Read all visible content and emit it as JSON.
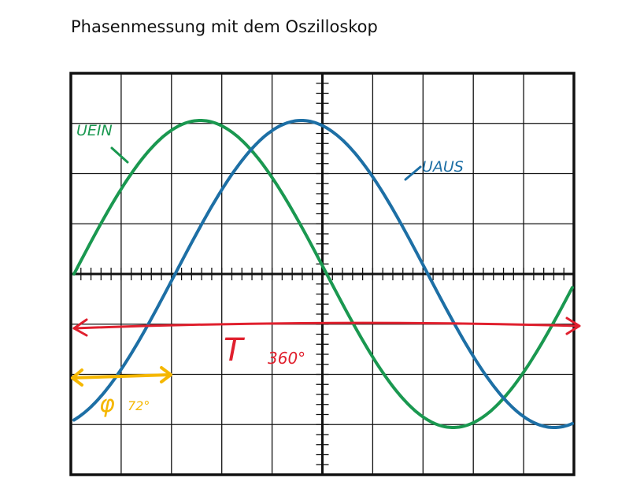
{
  "title": "Phasenmessung mit dem Oszilloskop",
  "labels": {
    "u_ein": "UEIN",
    "u_aus": "UAUS",
    "period": "T",
    "period_value": "360°",
    "phase": "φ",
    "phase_value": "72°"
  },
  "colors": {
    "u_ein": "#1a9850",
    "u_aus": "#1d6fa5",
    "period": "#e0202e",
    "phase": "#f5b700",
    "grid": "#111111"
  },
  "signals": {
    "u_ein_phase_deg": 0,
    "u_aus_phase_shift_deg": 72,
    "period_deg": 360
  }
}
